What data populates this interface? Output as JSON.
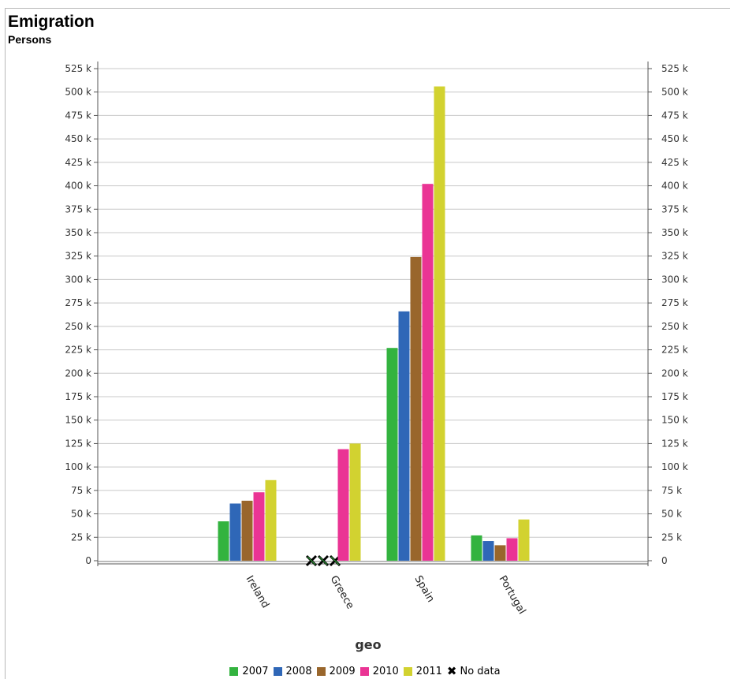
{
  "chart_data": {
    "type": "bar",
    "title": "Emigration",
    "subtitle": "Persons",
    "xlabel": "geo",
    "ylabel": "",
    "ylim": [
      0,
      525000
    ],
    "yticks": [
      "0",
      "25 k",
      "50 k",
      "75 k",
      "100 k",
      "125 k",
      "150 k",
      "175 k",
      "200 k",
      "225 k",
      "250 k",
      "275 k",
      "300 k",
      "325 k",
      "350 k",
      "375 k",
      "400 k",
      "425 k",
      "450 k",
      "475 k",
      "500 k",
      "525 k"
    ],
    "grid": true,
    "dual_y_axis": true,
    "categories": [
      "Ireland",
      "Greece",
      "Spain",
      "Portugal"
    ],
    "series": [
      {
        "name": "2007",
        "color": "#33b33f",
        "values": [
          42000,
          null,
          227000,
          27000
        ]
      },
      {
        "name": "2008",
        "color": "#2f67b7",
        "values": [
          61000,
          null,
          266000,
          21000
        ]
      },
      {
        "name": "2009",
        "color": "#99662c",
        "values": [
          64000,
          null,
          324000,
          16500
        ]
      },
      {
        "name": "2010",
        "color": "#ea3494",
        "values": [
          73000,
          119000,
          402000,
          24000
        ]
      },
      {
        "name": "2011",
        "color": "#d2d230",
        "values": [
          86000,
          125000,
          506000,
          44000
        ]
      }
    ],
    "no_data_label": "No data",
    "legend_position": "bottom-center"
  }
}
